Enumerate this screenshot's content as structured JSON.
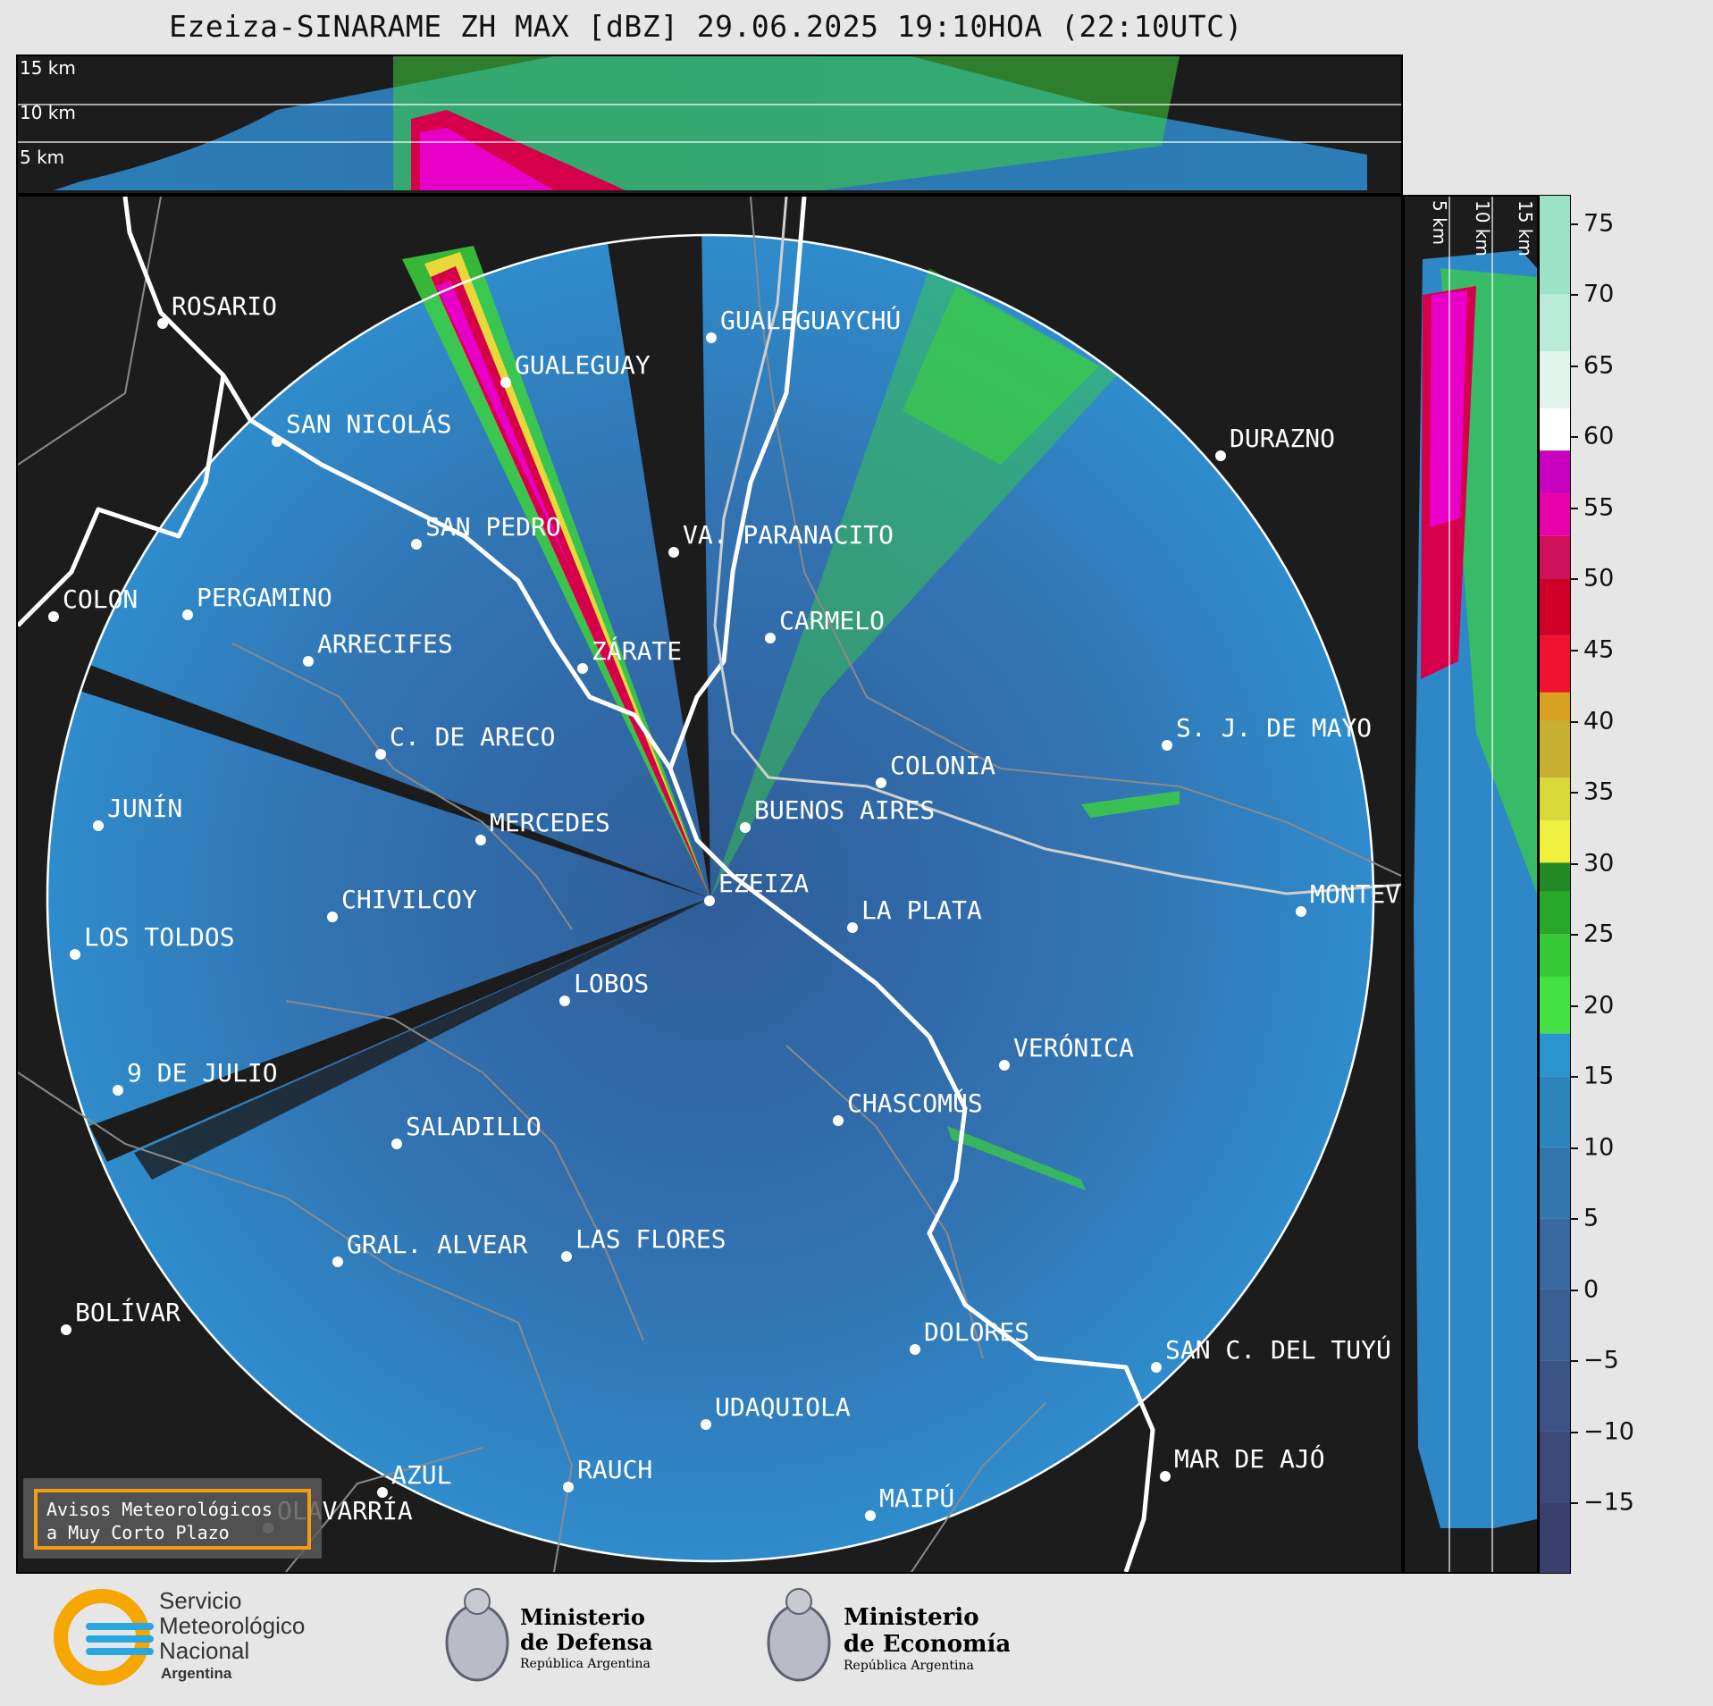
{
  "title": "Ezeiza-SINARAME ZH MAX [dBZ] 29.06.2025 19:10HOA (22:10UTC)",
  "altitude_labels_top": [
    "15 km",
    "10 km",
    "5 km"
  ],
  "altitude_labels_right": [
    "5 km",
    "10 km",
    "15 km"
  ],
  "cities": [
    {
      "name": "ROSARIO"
    },
    {
      "name": "GUALEGUAYCHÚ"
    },
    {
      "name": "GUALEGUAY"
    },
    {
      "name": "SAN NICOLÁS"
    },
    {
      "name": "DURAZNO"
    },
    {
      "name": "SAN PEDRO"
    },
    {
      "name": "VA. PARANACITO"
    },
    {
      "name": "COLON"
    },
    {
      "name": "PERGAMINO"
    },
    {
      "name": "CARMELO"
    },
    {
      "name": "ARRECIFES"
    },
    {
      "name": "ZÁRATE"
    },
    {
      "name": "C. DE ARECO"
    },
    {
      "name": "S. J. DE MAYO"
    },
    {
      "name": "COLONIA"
    },
    {
      "name": "JUNÍN"
    },
    {
      "name": "BUENOS AIRES"
    },
    {
      "name": "MERCEDES"
    },
    {
      "name": "EZEIZA"
    },
    {
      "name": "MONTEVIDEO"
    },
    {
      "name": "CHIVILCOY"
    },
    {
      "name": "LA PLATA"
    },
    {
      "name": "LOS TOLDOS"
    },
    {
      "name": "LOBOS"
    },
    {
      "name": "VERÓNICA"
    },
    {
      "name": "9 DE JULIO"
    },
    {
      "name": "CHASCOMÚS"
    },
    {
      "name": "SALADILLO"
    },
    {
      "name": "GRAL. ALVEAR"
    },
    {
      "name": "LAS FLORES"
    },
    {
      "name": "BOLÍVAR"
    },
    {
      "name": "DOLORES"
    },
    {
      "name": "SAN C. DEL TUYÚ"
    },
    {
      "name": "UDAQUIOLA"
    },
    {
      "name": "MAR DE AJÓ"
    },
    {
      "name": "RAUCH"
    },
    {
      "name": "AZUL"
    },
    {
      "name": "OLAVARRÍA"
    },
    {
      "name": "MAIPÚ"
    }
  ],
  "colorbar": {
    "label": "dBZ",
    "min": -20,
    "max": 77,
    "ticks": [
      "75",
      "70",
      "65",
      "60",
      "55",
      "50",
      "45",
      "40",
      "35",
      "30",
      "25",
      "20",
      "15",
      "10",
      "5",
      "0",
      "−5",
      "−10",
      "−15"
    ],
    "tick_values": [
      75,
      70,
      65,
      60,
      55,
      50,
      45,
      40,
      35,
      30,
      25,
      20,
      15,
      10,
      5,
      0,
      -5,
      -10,
      -15
    ]
  },
  "warning_box": {
    "line1": "Avisos Meteorológicos",
    "line2": "a Muy Corto Plazo",
    "border_color": "#f39c12"
  },
  "logos": {
    "smn": {
      "line1": "Servicio",
      "line2": "Meteorológico",
      "line3": "Nacional",
      "line4": "Argentina",
      "color": "#29a8e0",
      "accent": "#f7a600"
    },
    "defensa": {
      "line1": "Ministerio",
      "line2": "de Defensa",
      "line3": "República Argentina"
    },
    "economia": {
      "line1": "Ministerio",
      "line2": "de Economía",
      "line3": "República Argentina"
    }
  },
  "colors": {
    "background": "#1c1c1c",
    "radar_base": "#2b78b8",
    "strong_echo": "#d6004a",
    "moderate_echo": "#3cd23c",
    "coastline": "#ffffff",
    "borders": "#8a8a8a"
  }
}
